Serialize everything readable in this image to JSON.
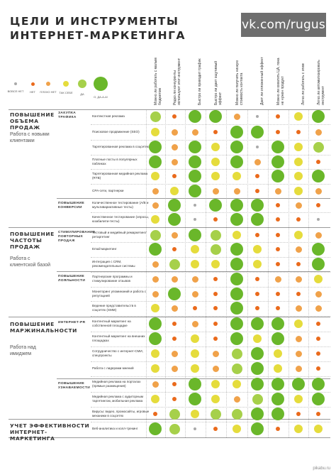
{
  "header": {
    "title_line1": "ЦЕЛИ И ИНСТРУМЕНТЫ",
    "title_line2": "ИНТЕРНЕТ-МАРКЕТИНГА",
    "brand": "vk.com/rugus"
  },
  "palette": {
    "none": "#a9a9a9",
    "weak": "#ea6a1c",
    "rather_no": "#f0a24a",
    "so_so": "#e5dc3c",
    "yes": "#a6d04a",
    "strong": "#6ab72a"
  },
  "legend": [
    {
      "key": "none",
      "label": "ВОВСЕ НЕТ"
    },
    {
      "key": "weak",
      "label": "НЕТ"
    },
    {
      "key": "rather_no",
      "label": "ПЛОХО НЕТ"
    },
    {
      "key": "so_so",
      "label": "ТАК СЕБЕ"
    },
    {
      "key": "yes",
      "label": "ДА"
    },
    {
      "key": "strong",
      "label": "О, ДА-А-А!"
    }
  ],
  "columns": [
    "Можно ли работать с малым бюджетом",
    "Редко ли конкуренты используют этот инструмент",
    "Быстро ли приводит трафик",
    "Быстро ли дает ощутимый эффект",
    "Можно ли получить низкую стоимость контакта",
    "Дает ли отложенный эффект",
    "Можно ли охватить ЦА, пока не нужен продукт",
    "Легко ли работать с этим",
    "Легко ли автоматизировать инструмент"
  ],
  "blocks": [
    {
      "title": "ПОВЫШЕНИЕ ОБЪЕМА ПРОДАЖ",
      "subtitle": "Работа с новыми клиентами"
    },
    {
      "title": "ПОВЫШЕНИЕ ЧАСТОТЫ ПРОДАЖ",
      "subtitle": "Работа с клиентской базой"
    },
    {
      "title": "ПОВЫШЕНИЕ МАРЖИНАЛЬНОСТИ",
      "subtitle": "Работа над имиджем"
    },
    {
      "title": "УЧЕТ ЭФФЕКТИВНОСТИ ИНТЕРНЕТ-МАРКЕТИНГА",
      "subtitle": ""
    }
  ],
  "groups": [
    "ЗАКУПКА ТРАФИКА",
    "ПОВЫШЕНИЕ КОНВЕРСИИ",
    "СТИМУЛИРОВАНИЕ ПОВТОРНЫХ ПРОДАЖ",
    "ПОВЫШЕНИЕ ЛОЯЛЬНОСТИ",
    "ИНТЕРНЕТ-PR",
    "ПОВЫШЕНИЕ УЗНАВАЕМОСТИ"
  ],
  "rows": [
    {
      "label": "Контекстная реклама",
      "ratings": [
        "yes",
        "weak",
        "strong",
        "strong",
        "rather_no",
        "none",
        "weak",
        "so_so",
        "strong"
      ]
    },
    {
      "label": "Поисковое продвижение (SEO)",
      "ratings": [
        "so_so",
        "rather_no",
        "rather_no",
        "weak",
        "strong",
        "strong",
        "weak",
        "weak",
        "rather_no"
      ]
    },
    {
      "label": "Таргетированная реклама в соцсетях",
      "ratings": [
        "strong",
        "rather_no",
        "strong",
        "so_so",
        "strong",
        "none",
        "strong",
        "so_so",
        "yes"
      ]
    },
    {
      "label": "Платные посты в популярных пабликах",
      "ratings": [
        "strong",
        "rather_no",
        "strong",
        "so_so",
        "strong",
        "rather_no",
        "strong",
        "so_so",
        "weak"
      ]
    },
    {
      "label": "Таргетированная медийная реклама (RTB)",
      "ratings": [
        "so_so",
        "weak",
        "strong",
        "so_so",
        "so_so",
        "weak",
        "strong",
        "so_so",
        "strong"
      ]
    },
    {
      "label": "СРА-сети, партнерки",
      "ratings": [
        "rather_no",
        "so_so",
        "strong",
        "rather_no",
        "rather_no",
        "weak",
        "rather_no",
        "so_so",
        "rather_no"
      ]
    },
    {
      "label": "Количественное тестирование (A/B и мультивариативные тесты)",
      "ratings": [
        "rather_no",
        "strong",
        "none",
        "strong",
        "strong",
        "strong",
        "weak",
        "rather_no",
        "weak"
      ]
    },
    {
      "label": "Качественное тестирование (опросы, юзабилити-тесты)",
      "ratings": [
        "so_so",
        "strong",
        "none",
        "weak",
        "strong",
        "strong",
        "weak",
        "weak",
        "none"
      ]
    },
    {
      "label": "Тестовый и медийный ремаркетинг/ретаргетинг",
      "ratings": [
        "yes",
        "rather_no",
        "strong",
        "yes",
        "so_so",
        "weak",
        "weak",
        "so_so",
        "rather_no"
      ]
    },
    {
      "label": "Email-маркетинг",
      "ratings": [
        "strong",
        "weak",
        "so_so",
        "yes",
        "strong",
        "so_so",
        "weak",
        "rather_no",
        "strong"
      ]
    },
    {
      "label": "Интеграция с CRM, рекомендательные системы",
      "ratings": [
        "rather_no",
        "yes",
        "so_so",
        "so_so",
        "strong",
        "so_so",
        "weak",
        "weak",
        "strong"
      ]
    },
    {
      "label": "Партнерские программы и стимулирование отзывов",
      "ratings": [
        "rather_no",
        "rather_no",
        "rather_no",
        "weak",
        "strong",
        "weak",
        "rather_no",
        "rather_no",
        "so_so"
      ]
    },
    {
      "label": "Мониторинг упоминаний и работа с репутацией",
      "ratings": [
        "rather_no",
        "strong",
        "rather_no",
        "weak",
        "strong",
        "weak",
        "weak",
        "weak",
        "rather_no"
      ]
    },
    {
      "label": "Ведение представительств в соцсетях (SMM)",
      "ratings": [
        "so_so",
        "rather_no",
        "weak",
        "weak",
        "strong",
        "weak",
        "weak",
        "rather_no",
        "rather_no"
      ]
    },
    {
      "label": "Контентный маркетинг на собственной площадке",
      "ratings": [
        "strong",
        "weak",
        "rather_no",
        "weak",
        "strong",
        "strong",
        "strong",
        "so_so",
        "weak"
      ]
    },
    {
      "label": "Контентный маркетинг на внешних площадках",
      "ratings": [
        "strong",
        "weak",
        "so_so",
        "weak",
        "strong",
        "so_so",
        "strong",
        "rather_no",
        "weak"
      ]
    },
    {
      "label": "Сотрудничество с интернет-СМИ, спецпроекты",
      "ratings": [
        "so_so",
        "rather_no",
        "so_so",
        "rather_no",
        "yes",
        "strong",
        "so_so",
        "rather_no",
        "weak"
      ]
    },
    {
      "label": "Работа с лидерами мнений",
      "ratings": [
        "so_so",
        "rather_no",
        "so_so",
        "rather_no",
        "yes",
        "strong",
        "so_so",
        "rather_no",
        "weak"
      ]
    },
    {
      "label": "Медийная реклама на порталах (прямые размещения)",
      "ratings": [
        "rather_no",
        "weak",
        "strong",
        "so_so",
        "so_so",
        "strong",
        "strong",
        "strong",
        "strong"
      ]
    },
    {
      "label": "Медийная реклама с аудиторным таргетингом, мобильная реклама",
      "ratings": [
        "so_so",
        "weak",
        "strong",
        "so_so",
        "rather_no",
        "yes",
        "strong",
        "so_so",
        "strong"
      ]
    },
    {
      "label": "Вирусы: видео, промосайты, игровые механики в соцсетях",
      "ratings": [
        "weak",
        "yes",
        "so_so",
        "yes",
        "yes",
        "strong",
        "strong",
        "weak",
        "weak"
      ]
    },
    {
      "label": "Веб-аналитика и колл-трекинг",
      "ratings": [
        "strong",
        "yes",
        "none",
        "weak",
        "so_so",
        "strong",
        "weak",
        "so_so",
        "so_so"
      ]
    }
  ],
  "credit": "pikabu.ru"
}
